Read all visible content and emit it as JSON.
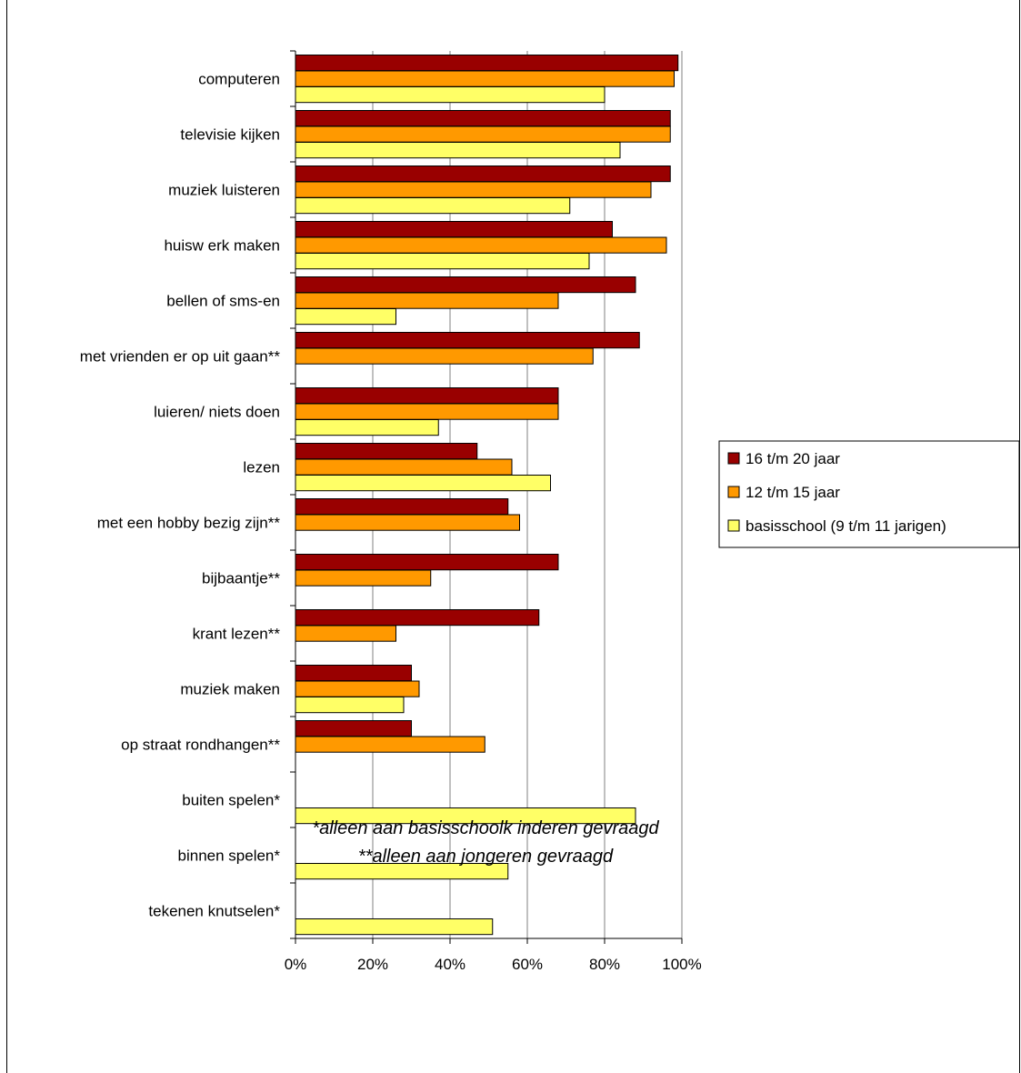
{
  "chart_data": {
    "type": "bar",
    "orientation": "horizontal",
    "categories": [
      "computeren",
      "televisie kijken",
      "muziek luisteren",
      "huisw erk maken",
      "bellen of sms-en",
      "met vrienden er op uit gaan**",
      "luieren/ niets doen",
      "lezen",
      "met een hobby bezig zijn**",
      "bijbaantje**",
      "krant lezen**",
      "muziek maken",
      "op straat rondhangen**",
      "buiten spelen*",
      "binnen spelen*",
      "tekenen knutselen*"
    ],
    "series": [
      {
        "name": "16 t/m 20 jaar",
        "color": "#990000",
        "values": [
          99,
          97,
          97,
          82,
          88,
          89,
          68,
          47,
          55,
          68,
          63,
          30,
          30,
          null,
          null,
          null
        ]
      },
      {
        "name": "12 t/m 15 jaar",
        "color": "#FF9900",
        "values": [
          98,
          97,
          92,
          96,
          68,
          77,
          68,
          56,
          58,
          35,
          26,
          32,
          49,
          null,
          null,
          null
        ]
      },
      {
        "name": "basisschool (9 t/m 11 jarigen)",
        "color": "#FFFF66",
        "values": [
          80,
          84,
          71,
          76,
          26,
          null,
          37,
          66,
          null,
          null,
          null,
          28,
          null,
          88,
          55,
          51
        ]
      }
    ],
    "xlim": [
      0,
      100
    ],
    "xticks": [
      0,
      20,
      40,
      60,
      80,
      100
    ],
    "tick_suffix": "%",
    "grid": true,
    "legend_position": "right"
  },
  "footnotes": {
    "line1": "*alleen aan basisschoolk inderen gevraagd",
    "line2": "**alleen aan jongeren gevraagd"
  }
}
